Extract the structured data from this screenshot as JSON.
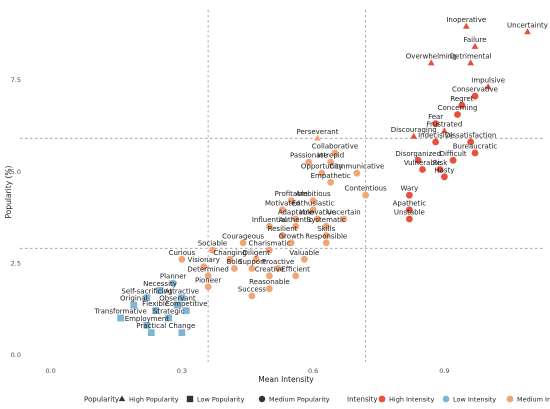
{
  "chart_data": {
    "type": "scatter",
    "xlabel": "Mean Intensity",
    "ylabel": "Popularity (%)",
    "xlim": [
      -0.07,
      1.13
    ],
    "ylim": [
      -0.2,
      9.4
    ],
    "xticks": [
      0.0,
      0.3,
      0.6,
      0.9
    ],
    "xtick_labels": [
      "0.0",
      "0.3",
      "0.6",
      "0.9"
    ],
    "yticks": [
      0.0,
      2.5,
      5.0,
      7.5
    ],
    "ytick_labels": [
      "0.0",
      "2.5",
      "5.0",
      "7.5"
    ],
    "grid": false,
    "ref_lines_x": [
      0.36,
      0.72
    ],
    "ref_lines_y": [
      2.9,
      5.9
    ],
    "legend": {
      "placement": "bottom",
      "popularity_title": "Popularity",
      "popularity_items": [
        {
          "label": "High Popularity",
          "shape": "triangle"
        },
        {
          "label": "Low Popularity",
          "shape": "square"
        },
        {
          "label": "Medium Popularity",
          "shape": "circle"
        }
      ],
      "intensity_title": "Intensity",
      "intensity_items": [
        {
          "label": "High Intensity",
          "color": "#e8503e"
        },
        {
          "label": "Low Intensity",
          "color": "#7fb5d5"
        },
        {
          "label": "Medium Intensity",
          "color": "#f3a57a"
        }
      ]
    },
    "colors": {
      "High": "#e8503e",
      "Medium": "#f3a57a",
      "Low": "#7fb5d5"
    },
    "points": [
      {
        "label": "Inoperative",
        "x": 0.95,
        "y": 8.95,
        "shape": "triangle",
        "intensity": "High"
      },
      {
        "label": "Uncertainty",
        "x": 1.09,
        "y": 8.8,
        "shape": "triangle",
        "intensity": "High"
      },
      {
        "label": "Failure",
        "x": 0.97,
        "y": 8.4,
        "shape": "triangle",
        "intensity": "High"
      },
      {
        "label": "Overwhelming",
        "x": 0.87,
        "y": 7.95,
        "shape": "triangle",
        "intensity": "High"
      },
      {
        "label": "Detrimental",
        "x": 0.96,
        "y": 7.95,
        "shape": "triangle",
        "intensity": "High"
      },
      {
        "label": "Impulsive",
        "x": 1.0,
        "y": 7.3,
        "shape": "triangle",
        "intensity": "High"
      },
      {
        "label": "Conservative",
        "x": 0.97,
        "y": 7.05,
        "shape": "circle",
        "intensity": "High"
      },
      {
        "label": "Regret",
        "x": 0.94,
        "y": 6.8,
        "shape": "circle",
        "intensity": "High"
      },
      {
        "label": "Concerning",
        "x": 0.93,
        "y": 6.55,
        "shape": "circle",
        "intensity": "High"
      },
      {
        "label": "Fear",
        "x": 0.88,
        "y": 6.3,
        "shape": "circle",
        "intensity": "High"
      },
      {
        "label": "Frustrated",
        "x": 0.9,
        "y": 6.1,
        "shape": "triangle",
        "intensity": "High"
      },
      {
        "label": "Discouraging",
        "x": 0.83,
        "y": 5.95,
        "shape": "triangle",
        "intensity": "High"
      },
      {
        "label": "Indecisive",
        "x": 0.88,
        "y": 5.8,
        "shape": "circle",
        "intensity": "High"
      },
      {
        "label": "Dissatisfaction",
        "x": 0.96,
        "y": 5.8,
        "shape": "circle",
        "intensity": "High"
      },
      {
        "label": "Bureaucratic",
        "x": 0.97,
        "y": 5.5,
        "shape": "circle",
        "intensity": "High"
      },
      {
        "label": "Disorganized",
        "x": 0.84,
        "y": 5.3,
        "shape": "circle",
        "intensity": "High"
      },
      {
        "label": "Difficult",
        "x": 0.92,
        "y": 5.3,
        "shape": "circle",
        "intensity": "High"
      },
      {
        "label": "Vulnerable",
        "x": 0.85,
        "y": 5.05,
        "shape": "circle",
        "intensity": "High"
      },
      {
        "label": "Risk",
        "x": 0.89,
        "y": 5.05,
        "shape": "circle",
        "intensity": "High"
      },
      {
        "label": "Hasty",
        "x": 0.9,
        "y": 4.85,
        "shape": "circle",
        "intensity": "High"
      },
      {
        "label": "Wary",
        "x": 0.82,
        "y": 4.35,
        "shape": "circle",
        "intensity": "High"
      },
      {
        "label": "Apathetic",
        "x": 0.82,
        "y": 3.95,
        "shape": "circle",
        "intensity": "High"
      },
      {
        "label": "Unstable",
        "x": 0.82,
        "y": 3.7,
        "shape": "circle",
        "intensity": "High"
      },
      {
        "label": "Perseverant",
        "x": 0.61,
        "y": 5.9,
        "shape": "triangle",
        "intensity": "Medium"
      },
      {
        "label": "Collaborative",
        "x": 0.65,
        "y": 5.5,
        "shape": "circle",
        "intensity": "Medium"
      },
      {
        "label": "Passionate",
        "x": 0.59,
        "y": 5.25,
        "shape": "circle",
        "intensity": "Medium"
      },
      {
        "label": "Intrepid",
        "x": 0.64,
        "y": 5.25,
        "shape": "circle",
        "intensity": "Medium"
      },
      {
        "label": "Opportunity",
        "x": 0.62,
        "y": 4.95,
        "shape": "circle",
        "intensity": "Medium"
      },
      {
        "label": "Communicative",
        "x": 0.7,
        "y": 4.95,
        "shape": "circle",
        "intensity": "Medium"
      },
      {
        "label": "Empathetic",
        "x": 0.64,
        "y": 4.7,
        "shape": "circle",
        "intensity": "Medium"
      },
      {
        "label": "Contentious",
        "x": 0.72,
        "y": 4.35,
        "shape": "circle",
        "intensity": "Medium"
      },
      {
        "label": "Profitable",
        "x": 0.55,
        "y": 4.2,
        "shape": "circle",
        "intensity": "Medium"
      },
      {
        "label": "Ambitious",
        "x": 0.6,
        "y": 4.2,
        "shape": "circle",
        "intensity": "Medium"
      },
      {
        "label": "Motivated",
        "x": 0.53,
        "y": 3.95,
        "shape": "circle",
        "intensity": "Medium"
      },
      {
        "label": "Enthusiastic",
        "x": 0.6,
        "y": 3.95,
        "shape": "circle",
        "intensity": "Medium"
      },
      {
        "label": "Adaptable",
        "x": 0.56,
        "y": 3.7,
        "shape": "circle",
        "intensity": "Medium"
      },
      {
        "label": "Innovative",
        "x": 0.61,
        "y": 3.7,
        "shape": "circle",
        "intensity": "Medium"
      },
      {
        "label": "Uncertain",
        "x": 0.67,
        "y": 3.7,
        "shape": "circle",
        "intensity": "Medium"
      },
      {
        "label": "Influential",
        "x": 0.5,
        "y": 3.5,
        "shape": "circle",
        "intensity": "Medium"
      },
      {
        "label": "Authentic",
        "x": 0.56,
        "y": 3.5,
        "shape": "circle",
        "intensity": "Medium"
      },
      {
        "label": "Systematic",
        "x": 0.63,
        "y": 3.5,
        "shape": "circle",
        "intensity": "Medium"
      },
      {
        "label": "Resilient",
        "x": 0.53,
        "y": 3.25,
        "shape": "circle",
        "intensity": "Medium"
      },
      {
        "label": "Skills",
        "x": 0.63,
        "y": 3.25,
        "shape": "circle",
        "intensity": "Medium"
      },
      {
        "label": "Courageous",
        "x": 0.44,
        "y": 3.05,
        "shape": "circle",
        "intensity": "Medium"
      },
      {
        "label": "Growth",
        "x": 0.55,
        "y": 3.05,
        "shape": "circle",
        "intensity": "Medium"
      },
      {
        "label": "Responsible",
        "x": 0.63,
        "y": 3.05,
        "shape": "circle",
        "intensity": "Medium"
      },
      {
        "label": "Sociable",
        "x": 0.37,
        "y": 2.85,
        "shape": "circle",
        "intensity": "Medium"
      },
      {
        "label": "Charismatic",
        "x": 0.5,
        "y": 2.85,
        "shape": "circle",
        "intensity": "Medium"
      },
      {
        "label": "Curious",
        "x": 0.3,
        "y": 2.6,
        "shape": "circle",
        "intensity": "Medium"
      },
      {
        "label": "Changing",
        "x": 0.41,
        "y": 2.6,
        "shape": "circle",
        "intensity": "Medium"
      },
      {
        "label": "Diligent",
        "x": 0.47,
        "y": 2.6,
        "shape": "circle",
        "intensity": "Medium"
      },
      {
        "label": "Valuable",
        "x": 0.58,
        "y": 2.6,
        "shape": "circle",
        "intensity": "Medium"
      },
      {
        "label": "Visionary",
        "x": 0.35,
        "y": 2.4,
        "shape": "circle",
        "intensity": "Medium"
      },
      {
        "label": "Bold",
        "x": 0.42,
        "y": 2.35,
        "shape": "circle",
        "intensity": "Medium"
      },
      {
        "label": "Support",
        "x": 0.46,
        "y": 2.35,
        "shape": "circle",
        "intensity": "Medium"
      },
      {
        "label": "Proactive",
        "x": 0.52,
        "y": 2.35,
        "shape": "circle",
        "intensity": "Medium"
      },
      {
        "label": "Determined",
        "x": 0.36,
        "y": 2.15,
        "shape": "circle",
        "intensity": "Medium"
      },
      {
        "label": "Creative",
        "x": 0.5,
        "y": 2.15,
        "shape": "circle",
        "intensity": "Medium"
      },
      {
        "label": "Efficient",
        "x": 0.56,
        "y": 2.15,
        "shape": "circle",
        "intensity": "Medium"
      },
      {
        "label": "Planner",
        "x": 0.28,
        "y": 1.95,
        "shape": "circle",
        "intensity": "Low"
      },
      {
        "label": "Pioneer",
        "x": 0.36,
        "y": 1.85,
        "shape": "circle",
        "intensity": "Medium"
      },
      {
        "label": "Reasonable",
        "x": 0.5,
        "y": 1.8,
        "shape": "circle",
        "intensity": "Medium"
      },
      {
        "label": "Necessity",
        "x": 0.25,
        "y": 1.75,
        "shape": "square",
        "intensity": "Low"
      },
      {
        "label": "Success",
        "x": 0.46,
        "y": 1.6,
        "shape": "circle",
        "intensity": "Medium"
      },
      {
        "label": "Self-sacrificing",
        "x": 0.22,
        "y": 1.55,
        "shape": "square",
        "intensity": "Low"
      },
      {
        "label": "Attractive",
        "x": 0.3,
        "y": 1.55,
        "shape": "square",
        "intensity": "Low"
      },
      {
        "label": "Original",
        "x": 0.19,
        "y": 1.35,
        "shape": "square",
        "intensity": "Low"
      },
      {
        "label": "Observant",
        "x": 0.29,
        "y": 1.35,
        "shape": "square",
        "intensity": "Low"
      },
      {
        "label": "Flexible",
        "x": 0.24,
        "y": 1.2,
        "shape": "square",
        "intensity": "Low"
      },
      {
        "label": "Competitive",
        "x": 0.31,
        "y": 1.2,
        "shape": "square",
        "intensity": "Low"
      },
      {
        "label": "Transformative",
        "x": 0.16,
        "y": 1.0,
        "shape": "square",
        "intensity": "Low"
      },
      {
        "label": "Strategic",
        "x": 0.27,
        "y": 1.0,
        "shape": "square",
        "intensity": "Low"
      },
      {
        "label": "Employment",
        "x": 0.22,
        "y": 0.8,
        "shape": "square",
        "intensity": "Low"
      },
      {
        "label": "Practical",
        "x": 0.23,
        "y": 0.6,
        "shape": "square",
        "intensity": "Low"
      },
      {
        "label": "Change",
        "x": 0.3,
        "y": 0.6,
        "shape": "square",
        "intensity": "Low"
      }
    ]
  }
}
